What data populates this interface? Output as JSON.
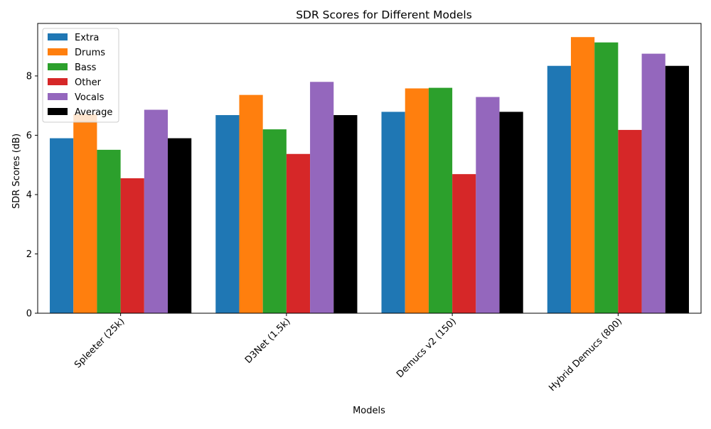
{
  "chart_data": {
    "type": "bar",
    "title": "SDR Scores for Different Models",
    "xlabel": "Models",
    "ylabel": "SDR Scores (dB)",
    "categories": [
      "Spleeter (25k)",
      "D3Net (1.5k)",
      "Demucs v2 (150)",
      "Hybrid Demucs (800)"
    ],
    "series": [
      {
        "name": "Extra",
        "color": "#1f77b4",
        "values": [
          5.9,
          6.68,
          6.79,
          8.34
        ]
      },
      {
        "name": "Drums",
        "color": "#ff7f0e",
        "values": [
          6.71,
          7.36,
          7.58,
          9.31
        ]
      },
      {
        "name": "Bass",
        "color": "#2ca02c",
        "values": [
          5.51,
          6.2,
          7.6,
          9.13
        ]
      },
      {
        "name": "Other",
        "color": "#d62728",
        "values": [
          4.55,
          5.37,
          4.69,
          6.18
        ]
      },
      {
        "name": "Vocals",
        "color": "#9467bd",
        "values": [
          6.86,
          7.8,
          7.29,
          8.75
        ]
      },
      {
        "name": "Average",
        "color": "#000000",
        "values": [
          5.9,
          6.68,
          6.79,
          8.34
        ]
      }
    ],
    "ylim": [
      0,
      9.77
    ],
    "yticks": [
      0,
      2,
      4,
      6,
      8
    ],
    "legend": "upper-left",
    "grid": false
  }
}
